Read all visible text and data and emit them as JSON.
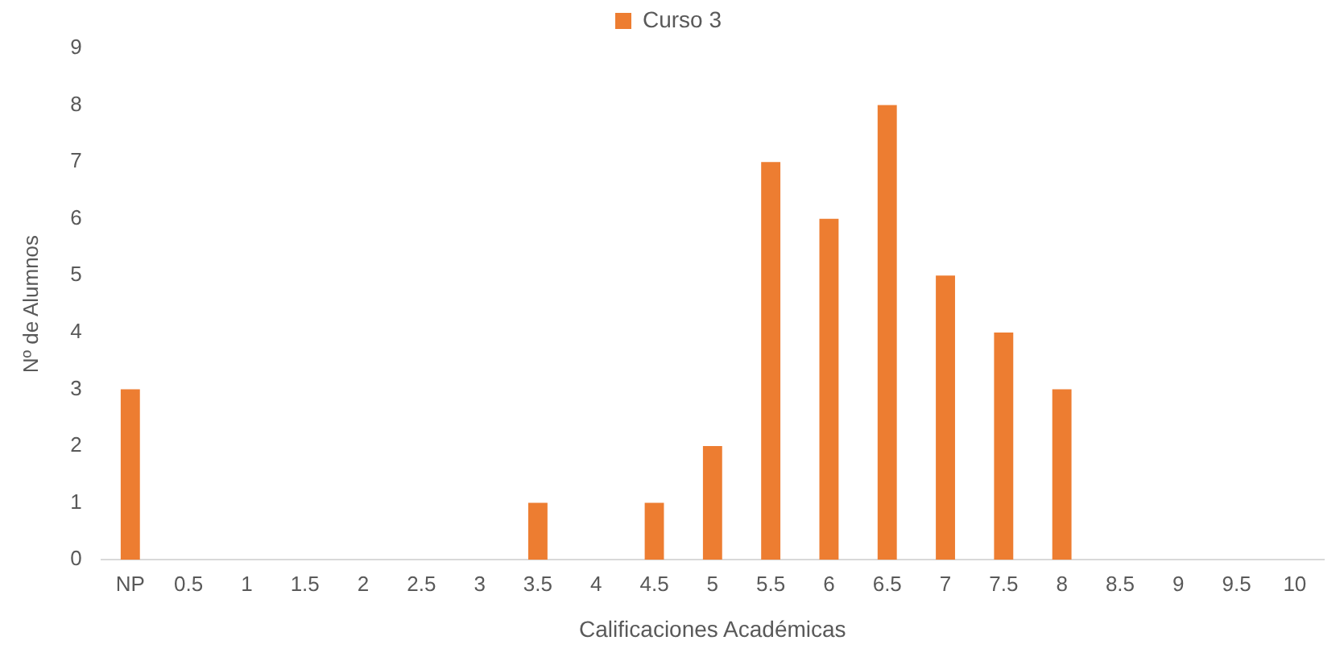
{
  "chart_data": {
    "type": "bar",
    "xlabel": "Calificaciones Académicas",
    "ylabel": "Nº de Alumnos",
    "categories": [
      "NP",
      "0.5",
      "1",
      "1.5",
      "2",
      "2.5",
      "3",
      "3.5",
      "4",
      "4.5",
      "5",
      "5.5",
      "6",
      "6.5",
      "7",
      "7.5",
      "8",
      "8.5",
      "9",
      "9.5",
      "10"
    ],
    "series": [
      {
        "name": "Curso 3",
        "color": "#ed7d31",
        "values": [
          3,
          0,
          0,
          0,
          0,
          0,
          0,
          1,
          0,
          1,
          2,
          7,
          6,
          8,
          5,
          4,
          3,
          0,
          0,
          0,
          0
        ]
      }
    ],
    "ylim": [
      0,
      9
    ],
    "yticks": [
      0,
      1,
      2,
      3,
      4,
      5,
      6,
      7,
      8,
      9
    ],
    "grid": false,
    "legend": "top"
  }
}
